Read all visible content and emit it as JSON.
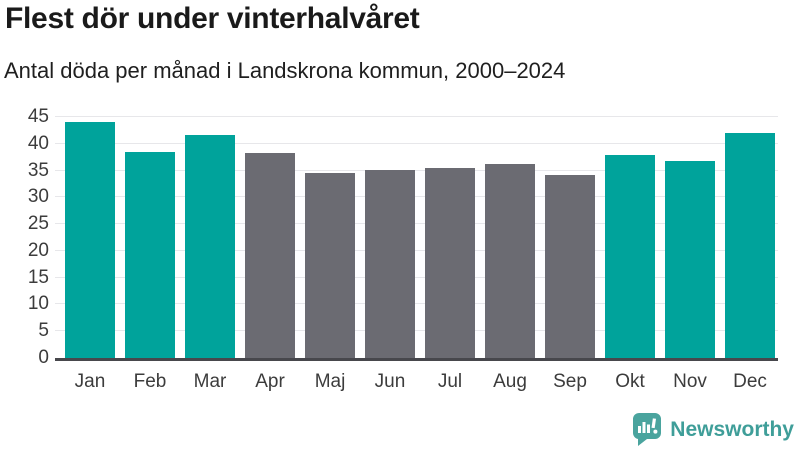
{
  "chart_data": {
    "type": "bar",
    "title": "Flest dör under vinterhalvåret",
    "subtitle": "Antal döda per månad i Landskrona kommun, 2000–2024",
    "categories": [
      "Jan",
      "Feb",
      "Mar",
      "Apr",
      "Maj",
      "Jun",
      "Jul",
      "Aug",
      "Sep",
      "Okt",
      "Nov",
      "Dec"
    ],
    "values": [
      44,
      38.5,
      41.7,
      38.3,
      34.6,
      35.2,
      35.5,
      36.3,
      34.2,
      38,
      36.8,
      42
    ],
    "bar_colors": [
      "#00a39b",
      "#00a39b",
      "#00a39b",
      "#6b6b72",
      "#6b6b72",
      "#6b6b72",
      "#6b6b72",
      "#6b6b72",
      "#6b6b72",
      "#00a39b",
      "#00a39b",
      "#00a39b"
    ],
    "ylim": [
      0,
      45
    ],
    "ytick_step": 5,
    "ytick_labels": [
      "0",
      "5",
      "10",
      "15",
      "20",
      "25",
      "30",
      "35",
      "40",
      "45"
    ],
    "grid": "horizontal",
    "legend_position": "none",
    "xlabel": "",
    "ylabel": ""
  },
  "colors": {
    "winter_bar": "#00a39b",
    "summer_bar": "#6b6b72",
    "gridline": "#e7e7ea",
    "axis_line": "#47474c",
    "title_text": "#1a1a1a",
    "axis_text": "#3c3c3c",
    "background": "#ffffff",
    "brand_teal": "#3f9e99"
  },
  "footer": {
    "brand": "Newsworthy",
    "icon": "newsworthy-speech-bubble-chart-icon"
  }
}
